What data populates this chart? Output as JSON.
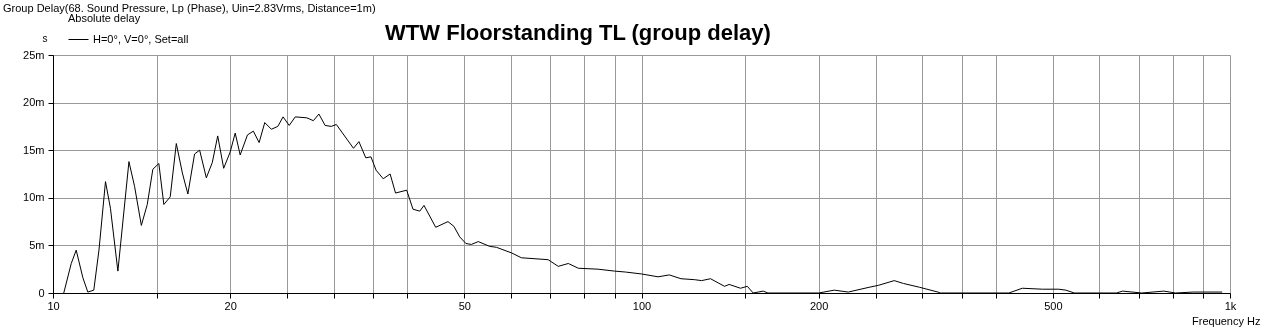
{
  "chart_data": {
    "type": "line",
    "title": "WTW Floorstanding TL (group delay)",
    "subtitle": "Group Delay(68. Sound Pressure, Lp (Phase), Uin=2.83Vrms, Distance=1m)",
    "xlabel": "Frequency Hz",
    "ylabel": "s",
    "legend_title": "Absolute delay",
    "log": "x",
    "grid": true,
    "legend": "top left",
    "marker": "none",
    "line_style": "solid",
    "xlim": [
      10,
      1000
    ],
    "ylim": [
      0,
      25
    ],
    "xticks": [
      10,
      {
        "value": 15,
        "label": null
      },
      20,
      {
        "value": 25,
        "label": null
      },
      {
        "value": 30,
        "label": null
      },
      {
        "value": 35,
        "label": null
      },
      {
        "value": 40,
        "label": null
      },
      50,
      {
        "value": 60,
        "label": null
      },
      {
        "value": 70,
        "label": null
      },
      {
        "value": 80,
        "label": null
      },
      {
        "value": 90,
        "label": null
      },
      100,
      {
        "value": 150,
        "label": null
      },
      200,
      {
        "value": 250,
        "label": null
      },
      {
        "value": 300,
        "label": null
      },
      {
        "value": 350,
        "label": null
      },
      {
        "value": 400,
        "label": null
      },
      500,
      {
        "value": 600,
        "label": null
      },
      {
        "value": 700,
        "label": null
      },
      {
        "value": 800,
        "label": null
      },
      {
        "value": 900,
        "label": null
      },
      {
        "value": 1000,
        "label": "1k"
      }
    ],
    "yticks": [
      0,
      {
        "value": 5,
        "label": "5m"
      },
      {
        "value": 10,
        "label": "10m"
      },
      {
        "value": 15,
        "label": "15m"
      },
      {
        "value": 20,
        "label": "20m"
      },
      {
        "value": 25,
        "label": "25m"
      }
    ],
    "series": [
      {
        "name": "H=0°, V=0°, Set=all",
        "color": "#000000",
        "x": [
          10.43,
          10.74,
          10.95,
          11.24,
          11.46,
          11.73,
          11.97,
          12.28,
          12.52,
          12.89,
          13.46,
          13.76,
          14.13,
          14.46,
          14.78,
          15.13,
          15.43,
          15.82,
          16.2,
          16.59,
          16.95,
          17.4,
          17.75,
          18.22,
          18.65,
          19.05,
          19.5,
          20.0,
          20.4,
          20.8,
          21.4,
          21.9,
          22.4,
          22.9,
          23.5,
          24.1,
          24.6,
          25.2,
          25.8,
          27.0,
          27.7,
          28.3,
          29.0,
          29.7,
          30.3,
          32.4,
          33.1,
          34.0,
          34.7,
          35.4,
          36.4,
          37.4,
          38.2,
          39.9,
          40.9,
          42.0,
          42.7,
          44.7,
          46.9,
          48.0,
          49.1,
          50.3,
          51.4,
          52.8,
          55.2,
          56.7,
          60.2,
          62.5,
          69.4,
          72.2,
          75.1,
          78.1,
          84.4,
          90,
          94,
          100,
          106.7,
          111.5,
          116.7,
          123.1,
          126.5,
          131,
          138.4,
          140.9,
          147.3,
          151.3,
          154.8,
          161,
          164,
          200,
          212.6,
          224.6,
          243.6,
          252.5,
          268.8,
          278.7,
          296.9,
          318.9,
          322,
          420.9,
          443.7,
          480,
          511.6,
          525.9,
          544.3,
          641,
          657,
          708,
          772,
          808,
          866,
          970
        ],
        "values": [
          0,
          3.1,
          4.5,
          1.6,
          0.1,
          0.3,
          4.5,
          11.7,
          8.9,
          2.3,
          13.8,
          11.2,
          7.1,
          9.3,
          13.0,
          13.6,
          9.3,
          10.1,
          15.7,
          12.6,
          10.4,
          14.6,
          15.0,
          12.1,
          13.7,
          16.5,
          13.1,
          14.8,
          16.8,
          14.5,
          16.6,
          17.0,
          15.8,
          17.9,
          17.2,
          17.5,
          18.5,
          17.6,
          18.5,
          18.4,
          18.1,
          18.8,
          17.6,
          17.5,
          17.7,
          15.2,
          15.9,
          14.2,
          14.3,
          12.9,
          12.0,
          12.5,
          10.5,
          10.8,
          8.8,
          8.6,
          9.2,
          6.9,
          7.5,
          7.0,
          5.9,
          5.2,
          5.1,
          5.4,
          4.9,
          4.8,
          4.2,
          3.7,
          3.5,
          2.8,
          3.1,
          2.6,
          2.5,
          2.3,
          2.2,
          2.0,
          1.7,
          1.9,
          1.5,
          1.4,
          1.3,
          1.5,
          0.7,
          0.9,
          0.5,
          0.7,
          0,
          0.2,
          0,
          0,
          0.3,
          0.1,
          0.6,
          0.8,
          1.3,
          1.0,
          0.6,
          0.1,
          0,
          0,
          0.5,
          0.4,
          0.4,
          0.3,
          0,
          0,
          0.2,
          0,
          0.2,
          0,
          0.1,
          0.1
        ]
      }
    ]
  }
}
